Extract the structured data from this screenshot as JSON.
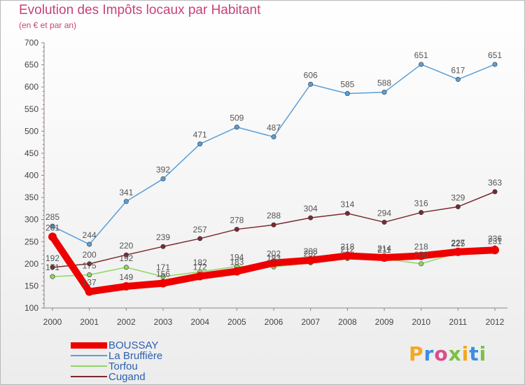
{
  "page": {
    "title": "Evolution des Impôts locaux par Habitant",
    "subtitle": "(en € et par an)"
  },
  "logo": {
    "text": "Proxiti",
    "colors": [
      "#f5a623",
      "#3b8ee0",
      "#d94c8a",
      "#7ac143",
      "#f5a623",
      "#3b8ee0",
      "#7ac143"
    ]
  },
  "chart_data": {
    "type": "line",
    "title": "Evolution des Impôts locaux par Habitant",
    "subtitle": "(en € et par an)",
    "x": [
      "2000",
      "2001",
      "2002",
      "2003",
      "2004",
      "2005",
      "2006",
      "2007",
      "2008",
      "2009",
      "2010",
      "2011",
      "2012"
    ],
    "ylim": [
      100,
      700
    ],
    "yticks": [
      100,
      150,
      200,
      250,
      300,
      350,
      400,
      450,
      500,
      550,
      600,
      650,
      700
    ],
    "grid": false,
    "legend_position": "bottom-left",
    "series": [
      {
        "name": "BOUSSAY",
        "color": "#ee0000",
        "values": [
          261,
          137,
          149,
          156,
          172,
          183,
          202,
          208,
          218,
          214,
          218,
          227,
          231
        ],
        "labels": [
          "261",
          "137",
          "149",
          "156",
          "172",
          "183",
          "202",
          "208",
          "218",
          "214",
          "218",
          "227",
          "231"
        ]
      },
      {
        "name": "La Bruffière",
        "color": "#5a9fd8",
        "values": [
          285,
          244,
          341,
          392,
          471,
          509,
          487,
          606,
          585,
          588,
          651,
          617,
          651
        ],
        "labels": [
          "285",
          "244",
          "341",
          "392",
          "471",
          "509",
          "487",
          "606",
          "585",
          "588",
          "651",
          "617",
          "651"
        ]
      },
      {
        "name": "Torfou",
        "color": "#8ed860",
        "values": [
          171,
          175,
          192,
          171,
          182,
          194,
          193,
          202,
          212,
          211,
          200,
          225,
          236
        ],
        "labels": [
          "171",
          "175",
          "192",
          "171",
          "182",
          "194",
          "193",
          "202",
          "212",
          "211",
          "200",
          "225",
          "236"
        ]
      },
      {
        "name": "Cugand",
        "color": "#7a2a30",
        "values": [
          192,
          200,
          220,
          239,
          257,
          278,
          288,
          304,
          314,
          294,
          316,
          329,
          363
        ],
        "labels": [
          "192",
          "200",
          "220",
          "239",
          "257",
          "278",
          "288",
          "304",
          "314",
          "294",
          "316",
          "329",
          "363"
        ]
      }
    ]
  }
}
